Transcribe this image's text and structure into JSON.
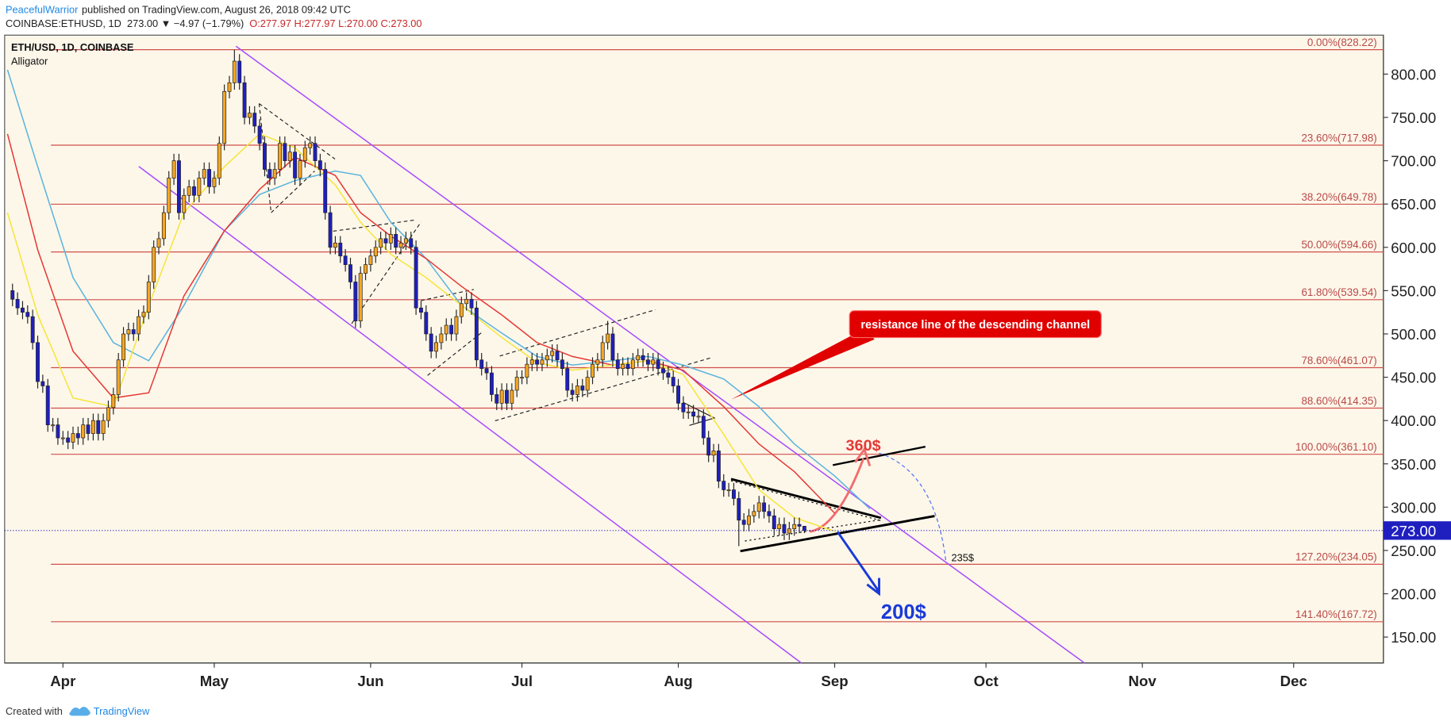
{
  "header": {
    "author": "PeacefulWarrior",
    "published": "published on TradingView.com, August 26, 2018 09:42 UTC",
    "symbol": "COINBASE:ETHUSD, 1D",
    "change": "273.00 ▼ −4.97 (−1.79%)",
    "ohlc": "O:277.97 H:277.97 L:270.00 C:273.00"
  },
  "chart_data": {
    "type": "candlestick",
    "title": "ETH/USD, 1D, COINBASE",
    "subtitle": "Alligator",
    "up_color": "#f5a623",
    "down_color": "#1f1fc0",
    "ohlc": [
      [
        550,
        558,
        532,
        540
      ],
      [
        540,
        548,
        522,
        530
      ],
      [
        530,
        538,
        517,
        525
      ],
      [
        525,
        533,
        512,
        520
      ],
      [
        520,
        528,
        482,
        490
      ],
      [
        490,
        498,
        437,
        445
      ],
      [
        445,
        453,
        432,
        440
      ],
      [
        440,
        448,
        387,
        395
      ],
      [
        395,
        403,
        387,
        395
      ],
      [
        395,
        403,
        372,
        380
      ],
      [
        380,
        388,
        372,
        380
      ],
      [
        380,
        388,
        367,
        375
      ],
      [
        375,
        393,
        367,
        385
      ],
      [
        385,
        393,
        372,
        380
      ],
      [
        380,
        403,
        372,
        395
      ],
      [
        395,
        403,
        377,
        385
      ],
      [
        385,
        408,
        377,
        400
      ],
      [
        400,
        408,
        377,
        385
      ],
      [
        385,
        408,
        377,
        400
      ],
      [
        400,
        423,
        392,
        415
      ],
      [
        415,
        438,
        407,
        430
      ],
      [
        430,
        478,
        422,
        470
      ],
      [
        470,
        508,
        462,
        500
      ],
      [
        500,
        513,
        492,
        505
      ],
      [
        505,
        513,
        492,
        500
      ],
      [
        500,
        528,
        492,
        520
      ],
      [
        520,
        533,
        512,
        525
      ],
      [
        525,
        568,
        517,
        560
      ],
      [
        560,
        608,
        552,
        600
      ],
      [
        600,
        618,
        592,
        610
      ],
      [
        610,
        648,
        602,
        640
      ],
      [
        640,
        688,
        632,
        680
      ],
      [
        680,
        708,
        672,
        700
      ],
      [
        700,
        708,
        632,
        640
      ],
      [
        640,
        668,
        632,
        660
      ],
      [
        660,
        678,
        652,
        670
      ],
      [
        670,
        678,
        652,
        660
      ],
      [
        660,
        688,
        652,
        680
      ],
      [
        680,
        698,
        672,
        690
      ],
      [
        690,
        698,
        662,
        670
      ],
      [
        670,
        688,
        662,
        680
      ],
      [
        680,
        728,
        672,
        720
      ],
      [
        720,
        788,
        712,
        780
      ],
      [
        780,
        798,
        772,
        790
      ],
      [
        790,
        828,
        782,
        815
      ],
      [
        815,
        823,
        782,
        790
      ],
      [
        790,
        798,
        742,
        750
      ],
      [
        750,
        763,
        742,
        755
      ],
      [
        755,
        763,
        732,
        740
      ],
      [
        740,
        748,
        712,
        720
      ],
      [
        720,
        728,
        682,
        690
      ],
      [
        690,
        698,
        672,
        680
      ],
      [
        680,
        698,
        672,
        690
      ],
      [
        690,
        728,
        682,
        720
      ],
      [
        720,
        728,
        692,
        700
      ],
      [
        700,
        718,
        692,
        710
      ],
      [
        710,
        718,
        672,
        680
      ],
      [
        680,
        708,
        672,
        700
      ],
      [
        700,
        723,
        692,
        715
      ],
      [
        715,
        728,
        707,
        720
      ],
      [
        720,
        728,
        692,
        700
      ],
      [
        700,
        708,
        682,
        690
      ],
      [
        690,
        698,
        632,
        640
      ],
      [
        640,
        648,
        592,
        600
      ],
      [
        600,
        613,
        592,
        605
      ],
      [
        605,
        613,
        582,
        590
      ],
      [
        590,
        598,
        572,
        580
      ],
      [
        580,
        588,
        552,
        560
      ],
      [
        560,
        568,
        507,
        515
      ],
      [
        515,
        578,
        507,
        570
      ],
      [
        570,
        588,
        562,
        580
      ],
      [
        580,
        598,
        572,
        590
      ],
      [
        590,
        608,
        582,
        600
      ],
      [
        600,
        618,
        592,
        610
      ],
      [
        610,
        618,
        597,
        605
      ],
      [
        605,
        623,
        597,
        615
      ],
      [
        615,
        623,
        592,
        600
      ],
      [
        600,
        613,
        592,
        605
      ],
      [
        605,
        618,
        597,
        610
      ],
      [
        610,
        618,
        592,
        600
      ],
      [
        600,
        608,
        522,
        530
      ],
      [
        530,
        538,
        517,
        525
      ],
      [
        525,
        533,
        492,
        500
      ],
      [
        500,
        508,
        472,
        480
      ],
      [
        480,
        498,
        472,
        490
      ],
      [
        490,
        508,
        482,
        500
      ],
      [
        500,
        518,
        492,
        510
      ],
      [
        510,
        518,
        492,
        500
      ],
      [
        500,
        528,
        492,
        520
      ],
      [
        520,
        543,
        512,
        535
      ],
      [
        535,
        548,
        527,
        540
      ],
      [
        540,
        548,
        522,
        530
      ],
      [
        530,
        538,
        462,
        470
      ],
      [
        470,
        478,
        452,
        460
      ],
      [
        460,
        468,
        447,
        455
      ],
      [
        455,
        463,
        422,
        430
      ],
      [
        430,
        438,
        412,
        420
      ],
      [
        420,
        443,
        412,
        435
      ],
      [
        435,
        443,
        412,
        420
      ],
      [
        420,
        443,
        412,
        435
      ],
      [
        435,
        458,
        427,
        450
      ],
      [
        450,
        458,
        442,
        450
      ],
      [
        450,
        473,
        442,
        465
      ],
      [
        465,
        478,
        457,
        470
      ],
      [
        470,
        478,
        457,
        465
      ],
      [
        465,
        478,
        457,
        470
      ],
      [
        470,
        483,
        462,
        475
      ],
      [
        475,
        488,
        467,
        480
      ],
      [
        480,
        488,
        462,
        470
      ],
      [
        470,
        478,
        452,
        460
      ],
      [
        460,
        468,
        427,
        435
      ],
      [
        435,
        443,
        422,
        430
      ],
      [
        430,
        448,
        422,
        440
      ],
      [
        440,
        448,
        427,
        435
      ],
      [
        435,
        458,
        427,
        450
      ],
      [
        450,
        473,
        442,
        465
      ],
      [
        465,
        478,
        457,
        470
      ],
      [
        470,
        498,
        462,
        490
      ],
      [
        490,
        515,
        482,
        500
      ],
      [
        500,
        508,
        462,
        470
      ],
      [
        470,
        478,
        452,
        460
      ],
      [
        460,
        473,
        452,
        465
      ],
      [
        465,
        473,
        452,
        460
      ],
      [
        460,
        478,
        452,
        470
      ],
      [
        470,
        483,
        462,
        475
      ],
      [
        475,
        483,
        462,
        470
      ],
      [
        470,
        478,
        457,
        465
      ],
      [
        465,
        478,
        457,
        470
      ],
      [
        470,
        478,
        452,
        460
      ],
      [
        460,
        468,
        447,
        455
      ],
      [
        455,
        463,
        442,
        450
      ],
      [
        450,
        458,
        432,
        440
      ],
      [
        440,
        448,
        412,
        420
      ],
      [
        420,
        428,
        402,
        410
      ],
      [
        410,
        418,
        402,
        410
      ],
      [
        410,
        418,
        397,
        405
      ],
      [
        405,
        413,
        397,
        405
      ],
      [
        405,
        413,
        372,
        380
      ],
      [
        380,
        388,
        352,
        360
      ],
      [
        360,
        373,
        352,
        365
      ],
      [
        365,
        373,
        322,
        330
      ],
      [
        330,
        338,
        312,
        320
      ],
      [
        320,
        328,
        312,
        320
      ],
      [
        320,
        328,
        302,
        310
      ],
      [
        310,
        318,
        255,
        285
      ],
      [
        285,
        293,
        272,
        280
      ],
      [
        280,
        298,
        272,
        290
      ],
      [
        290,
        303,
        282,
        295
      ],
      [
        295,
        313,
        287,
        305
      ],
      [
        305,
        313,
        287,
        295
      ],
      [
        295,
        303,
        282,
        290
      ],
      [
        290,
        298,
        267,
        275
      ],
      [
        275,
        288,
        267,
        280
      ],
      [
        280,
        288,
        262,
        270
      ],
      [
        270,
        283,
        262,
        275
      ],
      [
        275,
        288,
        267,
        280
      ],
      [
        280,
        288,
        270,
        277.97
      ],
      [
        277.97,
        277.97,
        270,
        273
      ]
    ],
    "series": [
      {
        "color": "#5ab4dc",
        "x": [
          -1,
          5,
          12,
          20,
          27,
          34,
          42,
          49,
          56,
          64,
          69,
          75,
          82,
          89,
          97,
          104,
          111,
          119,
          126,
          133,
          141,
          148,
          155,
          163,
          170
        ],
        "values": [
          805,
          693,
          565,
          490,
          469,
          533,
          619,
          661,
          677,
          688,
          683,
          629,
          587,
          533,
          501,
          474,
          464,
          469,
          474,
          464,
          448,
          416,
          373,
          336,
          298
        ]
      },
      {
        "color": "#e53935",
        "x": [
          -1,
          5,
          12,
          20,
          27,
          34,
          42,
          49,
          56,
          64,
          69,
          75,
          82,
          89,
          97,
          104,
          111,
          119,
          126,
          133,
          141,
          148,
          155,
          163,
          170
        ],
        "values": [
          731,
          597,
          480,
          426,
          432,
          544,
          619,
          667,
          704,
          683,
          640,
          613,
          587,
          555,
          522,
          490,
          474,
          464,
          469,
          458,
          416,
          373,
          341,
          293,
          null
        ]
      },
      {
        "color": "#f5e53a",
        "x": [
          -1,
          5,
          12,
          20,
          27,
          34,
          42,
          49,
          56,
          64,
          69,
          75,
          82,
          89,
          97,
          104,
          111,
          119,
          126,
          133,
          141,
          148,
          155,
          163,
          170
        ],
        "values": [
          640,
          522,
          426,
          416,
          533,
          640,
          693,
          731,
          715,
          672,
          629,
          592,
          565,
          533,
          496,
          467,
          458,
          464,
          469,
          453,
          384,
          320,
          288,
          272,
          null
        ]
      }
    ],
    "xlim": [
      -1.56,
      271.8
    ],
    "xticks": [
      {
        "value": 10,
        "label": "Apr"
      },
      {
        "value": 40,
        "label": "May"
      },
      {
        "value": 71,
        "label": "Jun"
      },
      {
        "value": 101,
        "label": "Jul"
      },
      {
        "value": 132,
        "label": "Aug"
      },
      {
        "value": 163,
        "label": "Sep"
      },
      {
        "value": 193,
        "label": "Oct"
      },
      {
        "value": 224,
        "label": "Nov"
      },
      {
        "value": 254,
        "label": "Dec"
      }
    ],
    "ylim": [
      120,
      845
    ],
    "yticks": [
      {
        "value": 150,
        "label": "150.00"
      },
      {
        "value": 200,
        "label": "200.00"
      },
      {
        "value": 250,
        "label": "250.00"
      },
      {
        "value": 300,
        "label": "300.00"
      },
      {
        "value": 350,
        "label": "350.00"
      },
      {
        "value": 400,
        "label": "400.00"
      },
      {
        "value": 450,
        "label": "450.00"
      },
      {
        "value": 500,
        "label": "500.00"
      },
      {
        "value": 550,
        "label": "550.00"
      },
      {
        "value": 600,
        "label": "600.00"
      },
      {
        "value": 650,
        "label": "650.00"
      },
      {
        "value": 700,
        "label": "700.00"
      },
      {
        "value": 750,
        "label": "750.00"
      },
      {
        "value": 800,
        "label": "800.00"
      }
    ],
    "fib_levels": [
      {
        "value": 828.22,
        "label": "0.00%(828.22)"
      },
      {
        "value": 717.98,
        "label": "23.60%(717.98)"
      },
      {
        "value": 649.78,
        "label": "38.20%(649.78)"
      },
      {
        "value": 594.66,
        "label": "50.00%(594.66)"
      },
      {
        "value": 539.54,
        "label": "61.80%(539.54)"
      },
      {
        "value": 461.07,
        "label": "78.60%(461.07)"
      },
      {
        "value": 414.35,
        "label": "88.60%(414.35)"
      },
      {
        "value": 361.1,
        "label": "100.00%(361.10)"
      },
      {
        "value": 234.05,
        "label": "127.20%(234.05)"
      },
      {
        "value": 167.72,
        "label": "141.40%(167.72)"
      }
    ],
    "last_price": {
      "value": 273,
      "label": "273.00"
    },
    "annotations": {
      "callout": "resistance line of the descending channel",
      "target_up": "360$",
      "target_down": "200$",
      "target_mid": "235$"
    }
  },
  "footer": {
    "created": "Created with",
    "brand": "TradingView"
  }
}
